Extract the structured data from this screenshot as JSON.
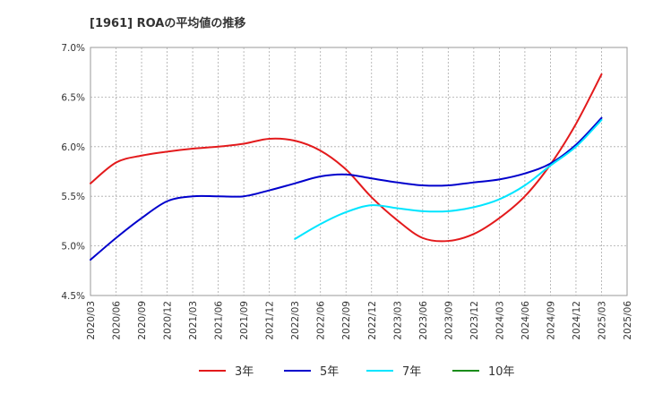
{
  "chart_data": {
    "type": "line",
    "title": "[1961]  ROAの平均値の推移",
    "xlabel": "",
    "ylabel": "",
    "ylim": [
      4.5,
      7.0
    ],
    "y_ticks": [
      "4.5%",
      "5.0%",
      "5.5%",
      "6.0%",
      "6.5%",
      "7.0%"
    ],
    "x_ticks": [
      "2020/03",
      "2020/06",
      "2020/09",
      "2020/12",
      "2021/03",
      "2021/06",
      "2021/09",
      "2021/12",
      "2022/03",
      "2022/06",
      "2022/09",
      "2022/12",
      "2023/03",
      "2023/06",
      "2023/09",
      "2023/12",
      "2024/03",
      "2024/06",
      "2024/09",
      "2024/12",
      "2025/03",
      "2025/06"
    ],
    "grid": true,
    "legend_position": "bottom",
    "series": [
      {
        "name": "3年",
        "color": "#e31a1c",
        "x": [
          "2020/03",
          "2020/06",
          "2020/09",
          "2020/12",
          "2021/03",
          "2021/06",
          "2021/09",
          "2021/12",
          "2022/03",
          "2022/06",
          "2022/09",
          "2022/12",
          "2023/03",
          "2023/06",
          "2023/09",
          "2023/12",
          "2024/03",
          "2024/06",
          "2024/09",
          "2024/12",
          "2025/03"
        ],
        "values": [
          5.63,
          5.84,
          5.91,
          5.95,
          5.98,
          6.0,
          6.03,
          6.08,
          6.06,
          5.96,
          5.77,
          5.49,
          5.26,
          5.08,
          5.05,
          5.12,
          5.28,
          5.5,
          5.82,
          6.23,
          6.73
        ]
      },
      {
        "name": "5年",
        "color": "#0000cc",
        "x": [
          "2020/03",
          "2020/06",
          "2020/09",
          "2020/12",
          "2021/03",
          "2021/06",
          "2021/09",
          "2021/12",
          "2022/03",
          "2022/06",
          "2022/09",
          "2022/12",
          "2023/03",
          "2023/06",
          "2023/09",
          "2023/12",
          "2024/03",
          "2024/06",
          "2024/09",
          "2024/12",
          "2025/03"
        ],
        "values": [
          4.86,
          5.08,
          5.28,
          5.45,
          5.5,
          5.5,
          5.5,
          5.56,
          5.63,
          5.7,
          5.72,
          5.68,
          5.64,
          5.61,
          5.61,
          5.64,
          5.67,
          5.73,
          5.83,
          6.02,
          6.29
        ]
      },
      {
        "name": "7年",
        "color": "#00e5ff",
        "x": [
          "2022/03",
          "2022/06",
          "2022/09",
          "2022/12",
          "2023/03",
          "2023/06",
          "2023/09",
          "2023/12",
          "2024/03",
          "2024/06",
          "2024/09",
          "2024/12",
          "2025/03"
        ],
        "values": [
          5.07,
          5.22,
          5.34,
          5.41,
          5.38,
          5.35,
          5.35,
          5.39,
          5.47,
          5.61,
          5.81,
          6.0,
          6.27
        ]
      },
      {
        "name": "10年",
        "color": "#1a8c1a",
        "x": [],
        "values": []
      }
    ]
  }
}
